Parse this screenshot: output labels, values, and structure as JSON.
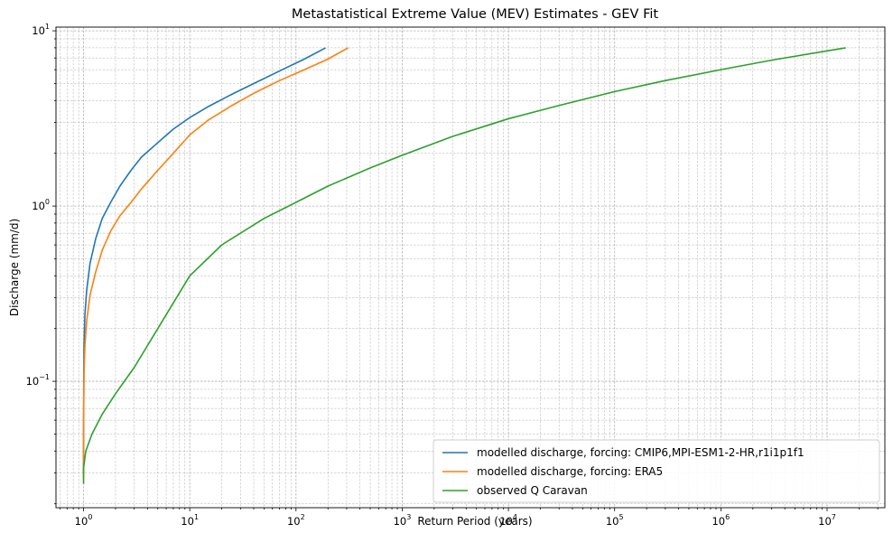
{
  "chart_data": {
    "type": "line",
    "title": "Metastatistical Extreme Value (MEV) Estimates - GEV Fit",
    "xlabel": "Return Period (years)",
    "ylabel": "Discharge (mm/d)",
    "xscale": "log",
    "yscale": "log",
    "xlim": [
      0.55,
      35000000
    ],
    "ylim": [
      0.019,
      10.5
    ],
    "grid": "both (major and minor, dashed)",
    "legend_position": "lower-right",
    "x_ticks": [
      {
        "base": "10",
        "exp": "0",
        "value": 1
      },
      {
        "base": "10",
        "exp": "1",
        "value": 10
      },
      {
        "base": "10",
        "exp": "2",
        "value": 100
      },
      {
        "base": "10",
        "exp": "3",
        "value": 1000
      },
      {
        "base": "10",
        "exp": "4",
        "value": 10000
      },
      {
        "base": "10",
        "exp": "5",
        "value": 100000
      },
      {
        "base": "10",
        "exp": "6",
        "value": 1000000
      },
      {
        "base": "10",
        "exp": "7",
        "value": 10000000
      }
    ],
    "y_ticks": [
      {
        "base": "10",
        "exp": "−1",
        "value": 0.1
      },
      {
        "base": "10",
        "exp": "0",
        "value": 1
      },
      {
        "base": "10",
        "exp": "1",
        "value": 10
      }
    ],
    "series": [
      {
        "name": "modelled discharge, forcing: CMIP6,MPI-ESM1-2-HR,r1i1p1f1",
        "color": "#1f77b4",
        "x": [
          1.0,
          1.0,
          1.005,
          1.01,
          1.03,
          1.07,
          1.15,
          1.3,
          1.5,
          1.8,
          2.2,
          2.8,
          3.5,
          5,
          7,
          10,
          15,
          25,
          40,
          70,
          120,
          190
        ],
        "y": [
          0.03,
          0.05,
          0.1,
          0.16,
          0.24,
          0.33,
          0.47,
          0.65,
          0.85,
          1.05,
          1.3,
          1.6,
          1.9,
          2.3,
          2.75,
          3.2,
          3.7,
          4.35,
          5.0,
          5.9,
          6.9,
          8.0
        ]
      },
      {
        "name": "modelled discharge, forcing: ERA5",
        "color": "#ff7f0e",
        "x": [
          1.0,
          1.0,
          1.005,
          1.01,
          1.03,
          1.07,
          1.15,
          1.3,
          1.5,
          1.8,
          2.2,
          2.8,
          3.5,
          5,
          7,
          10,
          15,
          25,
          40,
          70,
          120,
          200,
          310
        ],
        "y": [
          0.028,
          0.05,
          0.08,
          0.11,
          0.16,
          0.22,
          0.31,
          0.42,
          0.56,
          0.72,
          0.88,
          1.05,
          1.25,
          1.6,
          2.0,
          2.55,
          3.1,
          3.75,
          4.4,
          5.2,
          6.0,
          6.9,
          8.0
        ]
      },
      {
        "name": "observed Q Caravan",
        "color": "#2ca02c",
        "x": [
          1.0,
          1.0,
          1.05,
          1.2,
          1.5,
          2,
          3,
          5,
          10,
          20,
          50,
          100,
          200,
          500,
          1000,
          3000,
          10000,
          30000,
          100000,
          300000,
          1000000,
          3000000,
          15000000
        ],
        "y": [
          0.026,
          0.032,
          0.04,
          0.05,
          0.065,
          0.085,
          0.12,
          0.2,
          0.4,
          0.6,
          0.85,
          1.05,
          1.3,
          1.65,
          1.95,
          2.5,
          3.15,
          3.75,
          4.5,
          5.2,
          6.0,
          6.8,
          8.0
        ]
      }
    ]
  }
}
